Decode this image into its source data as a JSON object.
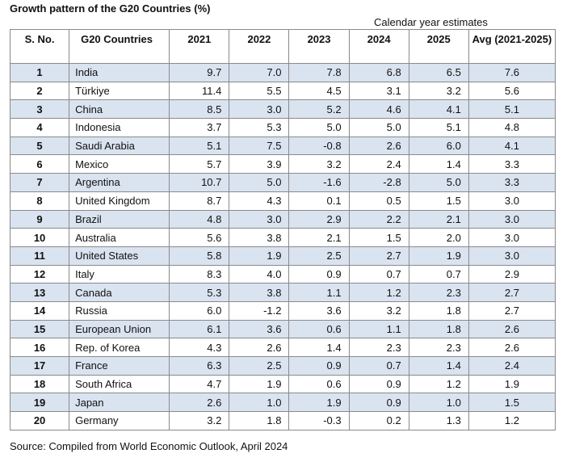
{
  "title": "Growth pattern of the G20 Countries (%)",
  "subtitle": "Calendar year estimates",
  "headers": [
    "S. No.",
    "G20 Countries",
    "2021",
    "2022",
    "2023",
    "2024",
    "2025",
    "Avg (2021-2025)"
  ],
  "rows": [
    {
      "sno": "1",
      "country": "India",
      "y2021": "9.7",
      "y2022": "7.0",
      "y2023": "7.8",
      "y2024": "6.8",
      "y2025": "6.5",
      "avg": "7.6"
    },
    {
      "sno": "2",
      "country": "Türkiye",
      "y2021": "11.4",
      "y2022": "5.5",
      "y2023": "4.5",
      "y2024": "3.1",
      "y2025": "3.2",
      "avg": "5.6"
    },
    {
      "sno": "3",
      "country": "China",
      "y2021": "8.5",
      "y2022": "3.0",
      "y2023": "5.2",
      "y2024": "4.6",
      "y2025": "4.1",
      "avg": "5.1"
    },
    {
      "sno": "4",
      "country": "Indonesia",
      "y2021": "3.7",
      "y2022": "5.3",
      "y2023": "5.0",
      "y2024": "5.0",
      "y2025": "5.1",
      "avg": "4.8"
    },
    {
      "sno": "5",
      "country": "Saudi Arabia",
      "y2021": "5.1",
      "y2022": "7.5",
      "y2023": "-0.8",
      "y2024": "2.6",
      "y2025": "6.0",
      "avg": "4.1"
    },
    {
      "sno": "6",
      "country": "Mexico",
      "y2021": "5.7",
      "y2022": "3.9",
      "y2023": "3.2",
      "y2024": "2.4",
      "y2025": "1.4",
      "avg": "3.3"
    },
    {
      "sno": "7",
      "country": "Argentina",
      "y2021": "10.7",
      "y2022": "5.0",
      "y2023": "-1.6",
      "y2024": "-2.8",
      "y2025": "5.0",
      "avg": "3.3"
    },
    {
      "sno": "8",
      "country": "United Kingdom",
      "y2021": "8.7",
      "y2022": "4.3",
      "y2023": "0.1",
      "y2024": "0.5",
      "y2025": "1.5",
      "avg": "3.0"
    },
    {
      "sno": "9",
      "country": "Brazil",
      "y2021": "4.8",
      "y2022": "3.0",
      "y2023": "2.9",
      "y2024": "2.2",
      "y2025": "2.1",
      "avg": "3.0"
    },
    {
      "sno": "10",
      "country": "Australia",
      "y2021": "5.6",
      "y2022": "3.8",
      "y2023": "2.1",
      "y2024": "1.5",
      "y2025": "2.0",
      "avg": "3.0"
    },
    {
      "sno": "11",
      "country": "United States",
      "y2021": "5.8",
      "y2022": "1.9",
      "y2023": "2.5",
      "y2024": "2.7",
      "y2025": "1.9",
      "avg": "3.0"
    },
    {
      "sno": "12",
      "country": "Italy",
      "y2021": "8.3",
      "y2022": "4.0",
      "y2023": "0.9",
      "y2024": "0.7",
      "y2025": "0.7",
      "avg": "2.9"
    },
    {
      "sno": "13",
      "country": "Canada",
      "y2021": "5.3",
      "y2022": "3.8",
      "y2023": "1.1",
      "y2024": "1.2",
      "y2025": "2.3",
      "avg": "2.7"
    },
    {
      "sno": "14",
      "country": "Russia",
      "y2021": "6.0",
      "y2022": "-1.2",
      "y2023": "3.6",
      "y2024": "3.2",
      "y2025": "1.8",
      "avg": "2.7"
    },
    {
      "sno": "15",
      "country": "European Union",
      "y2021": "6.1",
      "y2022": "3.6",
      "y2023": "0.6",
      "y2024": "1.1",
      "y2025": "1.8",
      "avg": "2.6"
    },
    {
      "sno": "16",
      "country": "Rep. of Korea",
      "y2021": "4.3",
      "y2022": "2.6",
      "y2023": "1.4",
      "y2024": "2.3",
      "y2025": "2.3",
      "avg": "2.6"
    },
    {
      "sno": "17",
      "country": "France",
      "y2021": "6.3",
      "y2022": "2.5",
      "y2023": "0.9",
      "y2024": "0.7",
      "y2025": "1.4",
      "avg": "2.4"
    },
    {
      "sno": "18",
      "country": "South Africa",
      "y2021": "4.7",
      "y2022": "1.9",
      "y2023": "0.6",
      "y2024": "0.9",
      "y2025": "1.2",
      "avg": "1.9"
    },
    {
      "sno": "19",
      "country": "Japan",
      "y2021": "2.6",
      "y2022": "1.0",
      "y2023": "1.9",
      "y2024": "0.9",
      "y2025": "1.0",
      "avg": "1.5"
    },
    {
      "sno": "20",
      "country": "Germany",
      "y2021": "3.2",
      "y2022": "1.8",
      "y2023": "-0.3",
      "y2024": "0.2",
      "y2025": "1.3",
      "avg": "1.2"
    }
  ],
  "shade_color": "#dae3f0",
  "source": "Source: Compiled from World Economic Outlook, April 2024"
}
